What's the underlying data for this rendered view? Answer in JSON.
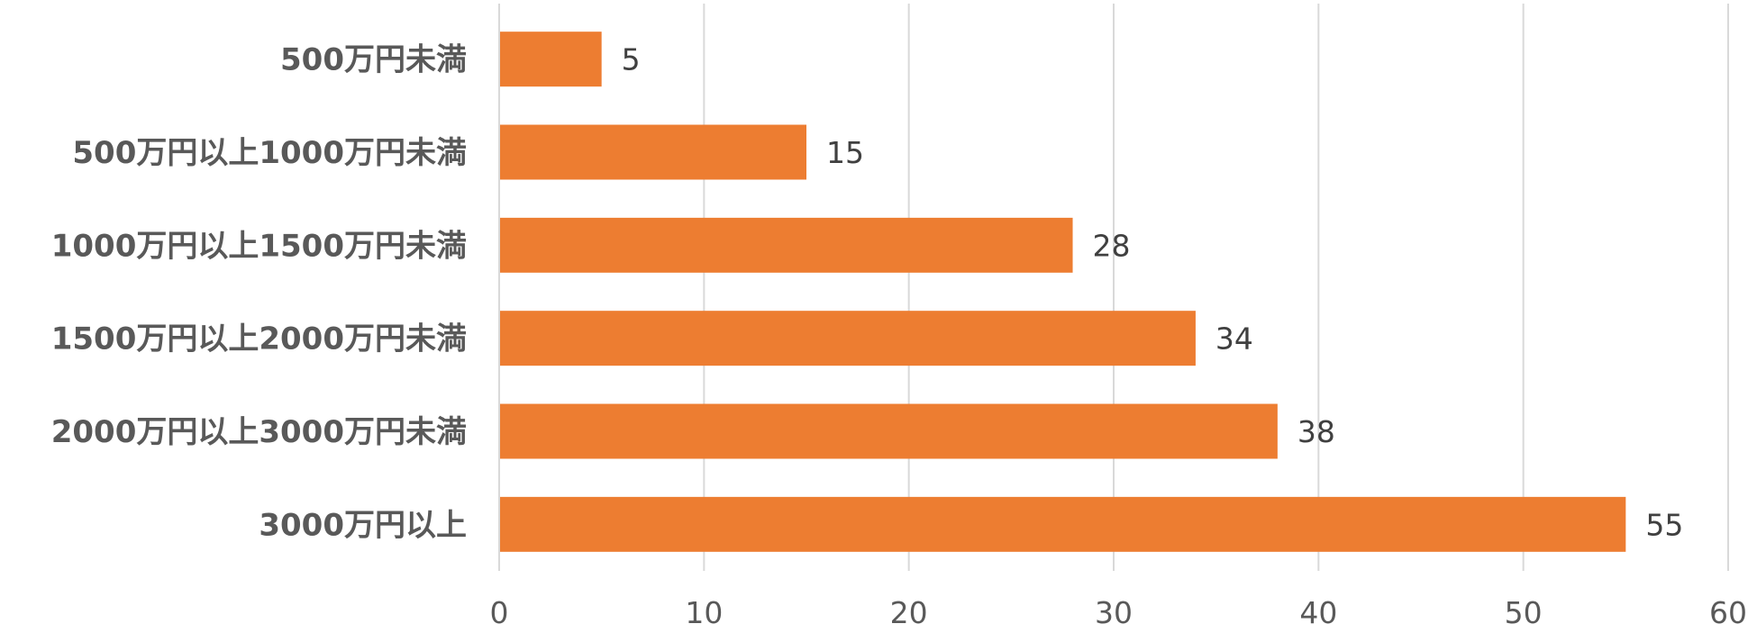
{
  "chart_data": {
    "type": "bar",
    "orientation": "horizontal",
    "categories": [
      "500万円未満",
      "500万円以上1000万円未満",
      "1000万円以上1500万円未満",
      "1500万円以上2000万円未満",
      "2000万円以上3000万円未満",
      "3000万円以上"
    ],
    "values": [
      5,
      15,
      28,
      34,
      38,
      55
    ],
    "title": "",
    "xlabel": "",
    "ylabel": "",
    "xlim": [
      0,
      60
    ],
    "ticks": [
      0,
      10,
      20,
      30,
      40,
      50,
      60
    ],
    "grid": true,
    "legend": "none",
    "data_labels": true,
    "bar_color": "#ED7D31"
  }
}
